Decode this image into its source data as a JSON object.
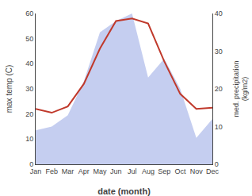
{
  "chart_data": {
    "type": "line",
    "xlabel": "date (month)",
    "ylabel": "max temp (C)",
    "y2label": "med. precipitation\n(kg/m2)",
    "categories": [
      "Jan",
      "Feb",
      "Mar",
      "Apr",
      "May",
      "Jun",
      "Jul",
      "Aug",
      "Sep",
      "Oct",
      "Nov",
      "Dec"
    ],
    "series": [
      {
        "type": "area",
        "color": "#c5cef0",
        "axis": "y2",
        "values": [
          9,
          10,
          13,
          22,
          35,
          38,
          40,
          23,
          28,
          20,
          7,
          12
        ]
      },
      {
        "type": "line",
        "color": "#c0392b",
        "values": [
          22,
          20.5,
          23,
          32,
          46,
          57,
          58,
          56,
          41,
          28,
          22,
          22.5
        ]
      }
    ],
    "ylim": [
      0,
      60
    ],
    "yticks": [
      0,
      10,
      20,
      30,
      40,
      50,
      60
    ],
    "y2lim": [
      0,
      40
    ],
    "y2ticks": [
      0,
      10,
      20,
      30,
      40
    ],
    "grid": false
  }
}
